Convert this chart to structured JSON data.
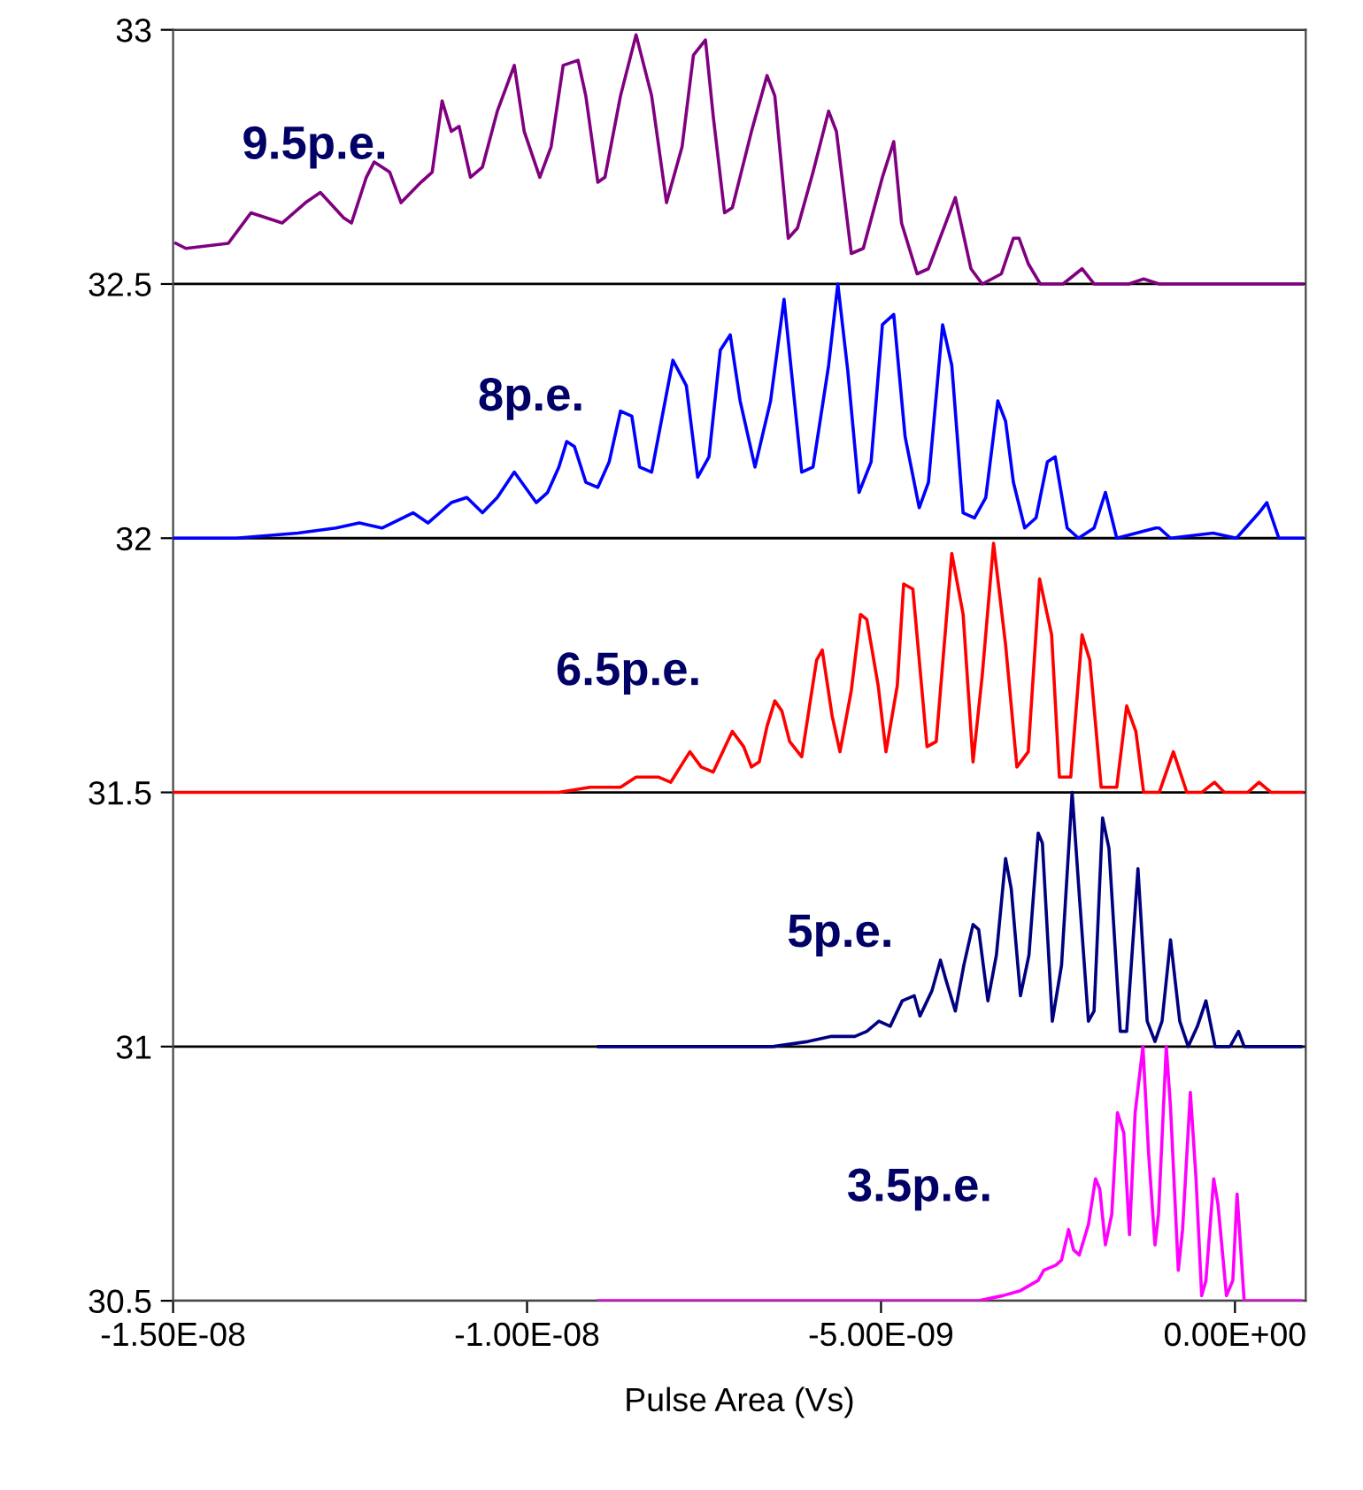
{
  "chart_data": {
    "type": "line",
    "xlabel": "Pulse Area (Vs)",
    "xlim": [
      -1.5e-08,
      1e-09
    ],
    "xticks": [
      {
        "value": -1.5e-08,
        "label": "-1.50E-08"
      },
      {
        "value": -1e-08,
        "label": "-1.00E-08"
      },
      {
        "value": -5e-09,
        "label": "-5.00E-09"
      },
      {
        "value": 0,
        "label": "0.00E+00"
      }
    ],
    "ylim": [
      30.5,
      33
    ],
    "yticks": [
      30.5,
      31,
      31.5,
      32,
      32.5,
      33
    ],
    "grid": "y",
    "legend": false,
    "marker": "none",
    "line_style": "solid",
    "series": [
      {
        "name": "9.5p.e.",
        "color": "#800080",
        "x": [
          -1.496e-08,
          -1.482e-08,
          -1.422e-08,
          -1.39e-08,
          -1.346e-08,
          -1.313e-08,
          -1.292e-08,
          -1.259e-08,
          -1.248e-08,
          -1.227e-08,
          -1.216e-08,
          -1.194e-08,
          -1.178e-08,
          -1.15e-08,
          -1.134e-08,
          -1.12e-08,
          -1.107e-08,
          -1.096e-08,
          -1.08e-08,
          -1.063e-08,
          -1.042e-08,
          -1.018e-08,
          -1.004e-08,
          -9.82e-09,
          -9.66e-09,
          -9.49e-09,
          -9.28e-09,
          -9.17e-09,
          -9e-09,
          -8.9e-09,
          -8.68e-09,
          -8.46e-09,
          -8.24e-09,
          -8.03e-09,
          -7.81e-09,
          -7.65e-09,
          -7.48e-09,
          -7.37e-09,
          -7.21e-09,
          -7.1e-09,
          -6.83e-09,
          -6.61e-09,
          -6.5e-09,
          -6.31e-09,
          -6.18e-09,
          -5.96e-09,
          -5.74e-09,
          -5.63e-09,
          -5.42e-09,
          -5.25e-09,
          -4.98e-09,
          -4.82e-09,
          -4.71e-09,
          -4.49e-09,
          -4.33e-09,
          -3.95e-09,
          -3.73e-09,
          -3.57e-09,
          -3.3e-09,
          -3.13e-09,
          -3.05e-09,
          -2.92e-09,
          -2.75e-09,
          -2.43e-09,
          -2.16e-09,
          -1.99e-09,
          -1.83e-09,
          -1.5e-09,
          -1.29e-09,
          -1.07e-09,
          -3.6e-10,
          9.5e-10
        ],
        "values": [
          32.58,
          32.57,
          32.58,
          32.64,
          32.62,
          32.66,
          32.68,
          32.63,
          32.62,
          32.71,
          32.74,
          32.72,
          32.66,
          32.7,
          32.72,
          32.86,
          32.8,
          32.81,
          32.71,
          32.73,
          32.84,
          32.93,
          32.8,
          32.71,
          32.77,
          32.93,
          32.94,
          32.87,
          32.7,
          32.71,
          32.87,
          32.99,
          32.87,
          32.66,
          32.77,
          32.95,
          32.98,
          32.83,
          32.64,
          32.65,
          32.8,
          32.91,
          32.87,
          32.59,
          32.61,
          32.72,
          32.84,
          32.8,
          32.56,
          32.57,
          32.71,
          32.78,
          32.62,
          32.52,
          32.53,
          32.67,
          32.53,
          32.5,
          32.52,
          32.59,
          32.59,
          32.54,
          32.5,
          32.5,
          32.53,
          32.5,
          32.5,
          32.5,
          32.51,
          32.5,
          32.5,
          32.5
        ]
      },
      {
        "name": "8p.e.",
        "color": "#0000ff",
        "x": [
          -1.498e-08,
          -1.411e-08,
          -1.324e-08,
          -1.27e-08,
          -1.237e-08,
          -1.205e-08,
          -1.161e-08,
          -1.14e-08,
          -1.107e-08,
          -1.085e-08,
          -1.063e-08,
          -1.042e-08,
          -1.018e-08,
          -9.87e-09,
          -9.71e-09,
          -9.55e-09,
          -9.44e-09,
          -9.33e-09,
          -9.17e-09,
          -9e-09,
          -8.84e-09,
          -8.68e-09,
          -8.52e-09,
          -8.41e-09,
          -8.24e-09,
          -7.94e-09,
          -7.75e-09,
          -7.59e-09,
          -7.43e-09,
          -7.27e-09,
          -7.13e-09,
          -6.99e-09,
          -6.78e-09,
          -6.56e-09,
          -6.37e-09,
          -6.12e-09,
          -5.96e-09,
          -5.74e-09,
          -5.61e-09,
          -5.47e-09,
          -5.31e-09,
          -5.14e-09,
          -4.98e-09,
          -4.82e-09,
          -4.66e-09,
          -4.46e-09,
          -4.33e-09,
          -4.13e-09,
          -4e-09,
          -3.84e-09,
          -3.68e-09,
          -3.52e-09,
          -3.35e-09,
          -3.24e-09,
          -3.13e-09,
          -2.97e-09,
          -2.81e-09,
          -2.65e-09,
          -2.54e-09,
          -2.37e-09,
          -2.21e-09,
          -1.99e-09,
          -1.83e-09,
          -1.67e-09,
          -1.12e-09,
          -1.07e-09,
          -9.1e-10,
          -3.1e-10,
          2e-11,
          3.4e-10,
          4.5e-10,
          6.2e-10,
          9.5e-10
        ],
        "values": [
          32.0,
          32.0,
          32.01,
          32.02,
          32.03,
          32.02,
          32.05,
          32.03,
          32.07,
          32.08,
          32.05,
          32.08,
          32.13,
          32.07,
          32.09,
          32.14,
          32.19,
          32.18,
          32.11,
          32.1,
          32.15,
          32.25,
          32.24,
          32.14,
          32.13,
          32.35,
          32.3,
          32.12,
          32.16,
          32.37,
          32.4,
          32.27,
          32.14,
          32.27,
          32.47,
          32.13,
          32.14,
          32.34,
          32.5,
          32.33,
          32.09,
          32.15,
          32.42,
          32.44,
          32.2,
          32.06,
          32.11,
          32.42,
          32.34,
          32.05,
          32.04,
          32.08,
          32.27,
          32.23,
          32.11,
          32.02,
          32.04,
          32.15,
          32.16,
          32.02,
          32.0,
          32.02,
          32.09,
          32.0,
          32.02,
          32.02,
          32.0,
          32.01,
          32.0,
          32.05,
          32.07,
          32.0,
          32.0
        ]
      },
      {
        "name": "6.5p.e.",
        "color": "#ff0000",
        "x": [
          -1.498e-08,
          -1.042e-08,
          -9.98e-09,
          -9.55e-09,
          -9.11e-09,
          -8.68e-09,
          -8.46e-09,
          -8.14e-09,
          -7.97e-09,
          -7.7e-09,
          -7.54e-09,
          -7.37e-09,
          -7.1e-09,
          -6.94e-09,
          -6.83e-09,
          -6.72e-09,
          -6.61e-09,
          -6.5e-09,
          -6.4e-09,
          -6.29e-09,
          -6.12e-09,
          -5.91e-09,
          -5.83e-09,
          -5.69e-09,
          -5.58e-09,
          -5.42e-09,
          -5.29e-09,
          -5.2e-09,
          -5.04e-09,
          -4.93e-09,
          -4.77e-09,
          -4.68e-09,
          -4.55e-09,
          -4.35e-09,
          -4.22e-09,
          -4e-09,
          -3.84e-09,
          -3.7e-09,
          -3.57e-09,
          -3.41e-09,
          -3.24e-09,
          -3.08e-09,
          -2.92e-09,
          -2.76e-09,
          -2.59e-09,
          -2.48e-09,
          -2.32e-09,
          -2.16e-09,
          -2.05e-09,
          -1.89e-09,
          -1.67e-09,
          -1.53e-09,
          -1.4e-09,
          -1.29e-09,
          -1.07e-09,
          -8.7e-10,
          -6.8e-10,
          -4.7e-10,
          -2.9e-10,
          -1.5e-10,
          1.8e-10,
          3.4e-10,
          5.1e-10,
          9.5e-10
        ],
        "values": [
          31.5,
          31.5,
          31.5,
          31.5,
          31.51,
          31.51,
          31.53,
          31.53,
          31.52,
          31.58,
          31.55,
          31.54,
          31.62,
          31.59,
          31.55,
          31.56,
          31.63,
          31.68,
          31.66,
          31.6,
          31.57,
          31.76,
          31.78,
          31.65,
          31.58,
          31.7,
          31.85,
          31.84,
          31.71,
          31.58,
          31.71,
          31.91,
          31.9,
          31.59,
          31.6,
          31.97,
          31.85,
          31.56,
          31.73,
          31.99,
          31.79,
          31.55,
          31.58,
          31.92,
          31.81,
          31.53,
          31.53,
          31.81,
          31.76,
          31.51,
          31.51,
          31.67,
          31.62,
          31.5,
          31.5,
          31.58,
          31.5,
          31.5,
          31.52,
          31.5,
          31.5,
          31.52,
          31.5,
          31.5
        ]
      },
      {
        "name": "5p.e.",
        "color": "#000080",
        "x": [
          -8.99e-09,
          -6.53e-09,
          -6.03e-09,
          -5.7e-09,
          -5.37e-09,
          -5.2e-09,
          -5.03e-09,
          -4.87e-09,
          -4.7e-09,
          -4.53e-09,
          -4.45e-09,
          -4.28e-09,
          -4.16e-09,
          -4.08e-09,
          -3.95e-09,
          -3.83e-09,
          -3.7e-09,
          -3.62e-09,
          -3.49e-09,
          -3.37e-09,
          -3.24e-09,
          -3.16e-09,
          -3.03e-09,
          -2.91e-09,
          -2.78e-09,
          -2.72e-09,
          -2.58e-09,
          -2.45e-09,
          -2.3e-09,
          -2.2e-09,
          -2.07e-09,
          -1.99e-09,
          -1.87e-09,
          -1.78e-09,
          -1.62e-09,
          -1.53e-09,
          -1.37e-09,
          -1.24e-09,
          -1.13e-09,
          -1.03e-09,
          -9.1e-10,
          -7.8e-10,
          -6.6e-10,
          -5.3e-10,
          -4.1e-10,
          -2.8e-10,
          -7e-11,
          5e-11,
          1.3e-10,
          9.3e-10
        ],
        "values": [
          31.0,
          31.0,
          31.01,
          31.02,
          31.02,
          31.03,
          31.05,
          31.04,
          31.09,
          31.1,
          31.06,
          31.11,
          31.17,
          31.13,
          31.07,
          31.16,
          31.24,
          31.23,
          31.09,
          31.18,
          31.37,
          31.31,
          31.1,
          31.18,
          31.42,
          31.4,
          31.05,
          31.16,
          31.5,
          31.3,
          31.05,
          31.07,
          31.45,
          31.39,
          31.03,
          31.03,
          31.35,
          31.05,
          31.01,
          31.05,
          31.21,
          31.05,
          31.0,
          31.04,
          31.09,
          31.0,
          31.0,
          31.03,
          31.0,
          31.0
        ]
      },
      {
        "name": "3.5p.e.",
        "color": "#ff00ff",
        "x": [
          -8.99e-09,
          -4.03e-09,
          -3.62e-09,
          -3.28e-09,
          -3.03e-09,
          -2.78e-09,
          -2.7e-09,
          -2.53e-09,
          -2.45e-09,
          -2.35e-09,
          -2.28e-09,
          -2.2e-09,
          -2.07e-09,
          -1.97e-09,
          -1.91e-09,
          -1.83e-09,
          -1.74e-09,
          -1.66e-09,
          -1.57e-09,
          -1.49e-09,
          -1.41e-09,
          -1.3e-09,
          -1.22e-09,
          -1.13e-09,
          -1.08e-09,
          -9.7e-10,
          -9.1e-10,
          -8e-10,
          -7.4e-10,
          -6.3e-10,
          -5.5e-10,
          -4.7e-10,
          -4.1e-10,
          -3e-10,
          -2.4e-10,
          -1.2e-10,
          -3e-11,
          3e-11,
          1.3e-10,
          9.3e-10
        ],
        "values": [
          30.5,
          30.5,
          30.5,
          30.51,
          30.52,
          30.54,
          30.56,
          30.57,
          30.58,
          30.64,
          30.6,
          30.59,
          30.65,
          30.74,
          30.72,
          30.61,
          30.67,
          30.87,
          30.83,
          30.63,
          30.87,
          31.0,
          30.79,
          30.61,
          30.67,
          31.0,
          30.88,
          30.56,
          30.64,
          30.91,
          30.74,
          30.51,
          30.54,
          30.74,
          30.69,
          30.51,
          30.54,
          30.71,
          30.5,
          30.5
        ]
      }
    ]
  }
}
